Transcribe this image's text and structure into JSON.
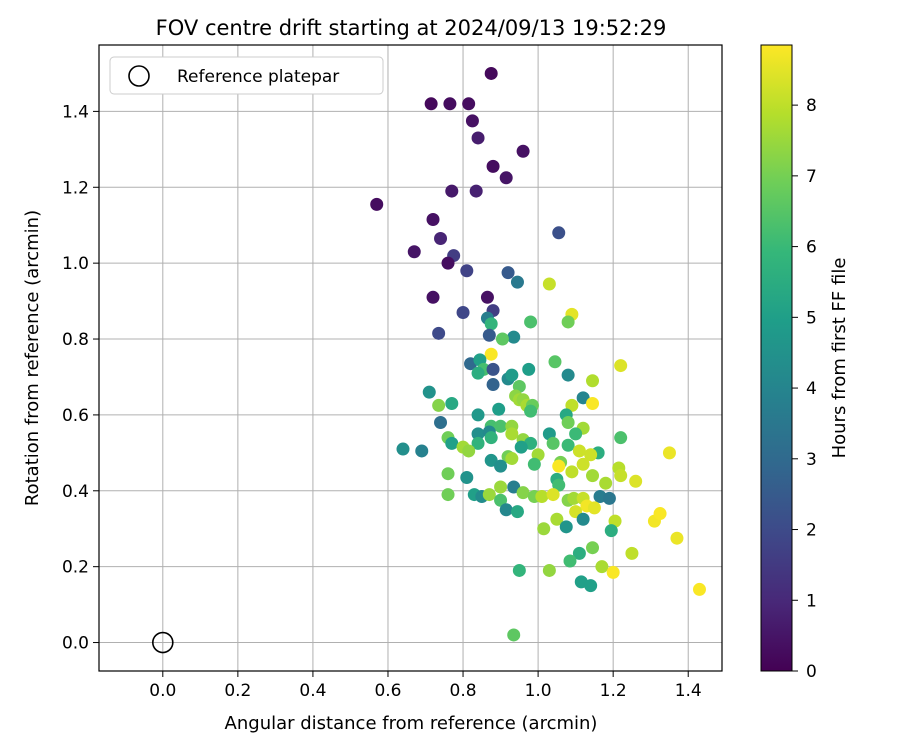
{
  "chart_data": {
    "type": "scatter",
    "title": "FOV centre drift starting at 2024/09/13 19:52:29",
    "xlabel": "Angular distance from reference (arcmin)",
    "ylabel": "Rotation from reference (arcmin)",
    "xlim": [
      -0.17,
      1.49
    ],
    "ylim": [
      -0.075,
      1.575
    ],
    "xticks": [
      "0.0",
      "0.2",
      "0.4",
      "0.6",
      "0.8",
      "1.0",
      "1.2",
      "1.4"
    ],
    "yticks": [
      "0.0",
      "0.2",
      "0.4",
      "0.6",
      "0.8",
      "1.0",
      "1.2",
      "1.4"
    ],
    "grid": true,
    "legend": {
      "position": "top-left",
      "entries": [
        {
          "label": "Reference platepar",
          "marker": "open-circle"
        }
      ]
    },
    "reference_point": {
      "x": 0.0,
      "y": 0.0
    },
    "colorbar": {
      "label": "Hours from first FF file",
      "colormap": "viridis",
      "range": [
        0,
        8.85
      ],
      "ticks": [
        "0",
        "1",
        "2",
        "3",
        "4",
        "5",
        "6",
        "7",
        "8"
      ]
    },
    "points": [
      {
        "x": 0.875,
        "y": 1.5,
        "c": 0.2
      },
      {
        "x": 0.715,
        "y": 1.42,
        "c": 0.2
      },
      {
        "x": 0.765,
        "y": 1.42,
        "c": 0.3
      },
      {
        "x": 0.815,
        "y": 1.42,
        "c": 0.3
      },
      {
        "x": 0.825,
        "y": 1.375,
        "c": 0.4
      },
      {
        "x": 0.84,
        "y": 1.33,
        "c": 0.7
      },
      {
        "x": 0.96,
        "y": 1.295,
        "c": 0.4
      },
      {
        "x": 0.88,
        "y": 1.255,
        "c": 0.3
      },
      {
        "x": 0.915,
        "y": 1.225,
        "c": 0.5
      },
      {
        "x": 0.77,
        "y": 1.19,
        "c": 0.6
      },
      {
        "x": 0.835,
        "y": 1.19,
        "c": 0.8
      },
      {
        "x": 0.57,
        "y": 1.155,
        "c": 0.3
      },
      {
        "x": 0.72,
        "y": 1.115,
        "c": 0.4
      },
      {
        "x": 0.74,
        "y": 1.065,
        "c": 0.9
      },
      {
        "x": 1.055,
        "y": 1.08,
        "c": 2.2
      },
      {
        "x": 0.67,
        "y": 1.03,
        "c": 0.5
      },
      {
        "x": 0.775,
        "y": 1.02,
        "c": 1.6
      },
      {
        "x": 0.76,
        "y": 1.0,
        "c": 0.3
      },
      {
        "x": 0.81,
        "y": 0.98,
        "c": 1.8
      },
      {
        "x": 0.92,
        "y": 0.975,
        "c": 2.5
      },
      {
        "x": 0.945,
        "y": 0.95,
        "c": 3.6
      },
      {
        "x": 1.03,
        "y": 0.945,
        "c": 8.1
      },
      {
        "x": 0.72,
        "y": 0.91,
        "c": 0.4
      },
      {
        "x": 0.865,
        "y": 0.91,
        "c": 0.4
      },
      {
        "x": 0.8,
        "y": 0.87,
        "c": 1.9
      },
      {
        "x": 0.88,
        "y": 0.875,
        "c": 1.6
      },
      {
        "x": 0.865,
        "y": 0.855,
        "c": 3.8
      },
      {
        "x": 1.09,
        "y": 0.865,
        "c": 8.5
      },
      {
        "x": 0.875,
        "y": 0.84,
        "c": 5.8
      },
      {
        "x": 0.98,
        "y": 0.845,
        "c": 6.3
      },
      {
        "x": 1.08,
        "y": 0.845,
        "c": 6.9
      },
      {
        "x": 0.735,
        "y": 0.815,
        "c": 2.0
      },
      {
        "x": 0.87,
        "y": 0.81,
        "c": 2.5
      },
      {
        "x": 0.935,
        "y": 0.805,
        "c": 4.2
      },
      {
        "x": 0.905,
        "y": 0.8,
        "c": 6.6
      },
      {
        "x": 0.875,
        "y": 0.76,
        "c": 8.8
      },
      {
        "x": 0.82,
        "y": 0.735,
        "c": 3.0
      },
      {
        "x": 0.845,
        "y": 0.745,
        "c": 5.0
      },
      {
        "x": 0.855,
        "y": 0.72,
        "c": 6.2
      },
      {
        "x": 0.88,
        "y": 0.72,
        "c": 2.3
      },
      {
        "x": 0.84,
        "y": 0.71,
        "c": 5.5
      },
      {
        "x": 0.92,
        "y": 0.695,
        "c": 4.2
      },
      {
        "x": 0.93,
        "y": 0.705,
        "c": 4.8
      },
      {
        "x": 0.975,
        "y": 0.72,
        "c": 4.9
      },
      {
        "x": 1.045,
        "y": 0.74,
        "c": 6.5
      },
      {
        "x": 1.08,
        "y": 0.705,
        "c": 4.2
      },
      {
        "x": 1.22,
        "y": 0.73,
        "c": 8.4
      },
      {
        "x": 0.88,
        "y": 0.68,
        "c": 2.8
      },
      {
        "x": 0.95,
        "y": 0.675,
        "c": 6.6
      },
      {
        "x": 1.145,
        "y": 0.69,
        "c": 7.8
      },
      {
        "x": 0.71,
        "y": 0.66,
        "c": 4.5
      },
      {
        "x": 0.94,
        "y": 0.65,
        "c": 7.3
      },
      {
        "x": 0.95,
        "y": 0.64,
        "c": 7.6
      },
      {
        "x": 0.96,
        "y": 0.64,
        "c": 7.4
      },
      {
        "x": 1.12,
        "y": 0.645,
        "c": 4.0
      },
      {
        "x": 0.735,
        "y": 0.625,
        "c": 7.2
      },
      {
        "x": 0.77,
        "y": 0.63,
        "c": 5.3
      },
      {
        "x": 0.97,
        "y": 0.625,
        "c": 7.7
      },
      {
        "x": 0.985,
        "y": 0.625,
        "c": 6.8
      },
      {
        "x": 1.09,
        "y": 0.625,
        "c": 8.0
      },
      {
        "x": 1.145,
        "y": 0.63,
        "c": 8.8
      },
      {
        "x": 0.895,
        "y": 0.615,
        "c": 4.9
      },
      {
        "x": 0.98,
        "y": 0.61,
        "c": 6.1
      },
      {
        "x": 0.84,
        "y": 0.6,
        "c": 4.7
      },
      {
        "x": 1.075,
        "y": 0.6,
        "c": 5.3
      },
      {
        "x": 1.08,
        "y": 0.58,
        "c": 6.9
      },
      {
        "x": 0.74,
        "y": 0.58,
        "c": 3.2
      },
      {
        "x": 0.875,
        "y": 0.57,
        "c": 6.2
      },
      {
        "x": 0.9,
        "y": 0.57,
        "c": 6.3
      },
      {
        "x": 0.93,
        "y": 0.57,
        "c": 7.4
      },
      {
        "x": 1.12,
        "y": 0.565,
        "c": 7.6
      },
      {
        "x": 0.84,
        "y": 0.55,
        "c": 4.4
      },
      {
        "x": 0.87,
        "y": 0.555,
        "c": 4.2
      },
      {
        "x": 0.93,
        "y": 0.55,
        "c": 7.7
      },
      {
        "x": 1.03,
        "y": 0.55,
        "c": 4.8
      },
      {
        "x": 1.1,
        "y": 0.55,
        "c": 6.0
      },
      {
        "x": 0.76,
        "y": 0.54,
        "c": 6.9
      },
      {
        "x": 0.875,
        "y": 0.54,
        "c": 5.7
      },
      {
        "x": 0.96,
        "y": 0.535,
        "c": 7.4
      },
      {
        "x": 1.22,
        "y": 0.54,
        "c": 6.3
      },
      {
        "x": 0.77,
        "y": 0.525,
        "c": 5.0
      },
      {
        "x": 0.84,
        "y": 0.525,
        "c": 5.7
      },
      {
        "x": 0.98,
        "y": 0.525,
        "c": 5.6
      },
      {
        "x": 1.04,
        "y": 0.525,
        "c": 6.5
      },
      {
        "x": 1.08,
        "y": 0.52,
        "c": 6.0
      },
      {
        "x": 0.64,
        "y": 0.51,
        "c": 4.4
      },
      {
        "x": 0.69,
        "y": 0.505,
        "c": 3.9
      },
      {
        "x": 0.8,
        "y": 0.515,
        "c": 7.6
      },
      {
        "x": 0.815,
        "y": 0.505,
        "c": 7.4
      },
      {
        "x": 0.955,
        "y": 0.515,
        "c": 5.0
      },
      {
        "x": 1.0,
        "y": 0.495,
        "c": 7.6
      },
      {
        "x": 1.11,
        "y": 0.505,
        "c": 8.2
      },
      {
        "x": 1.16,
        "y": 0.5,
        "c": 5.5
      },
      {
        "x": 0.92,
        "y": 0.49,
        "c": 6.9
      },
      {
        "x": 0.93,
        "y": 0.485,
        "c": 7.6
      },
      {
        "x": 1.06,
        "y": 0.475,
        "c": 7.0
      },
      {
        "x": 1.14,
        "y": 0.495,
        "c": 8.2
      },
      {
        "x": 1.35,
        "y": 0.5,
        "c": 8.6
      },
      {
        "x": 0.875,
        "y": 0.48,
        "c": 4.6
      },
      {
        "x": 0.9,
        "y": 0.465,
        "c": 4.4
      },
      {
        "x": 0.99,
        "y": 0.47,
        "c": 6.1
      },
      {
        "x": 1.055,
        "y": 0.465,
        "c": 8.8
      },
      {
        "x": 1.09,
        "y": 0.45,
        "c": 8.0
      },
      {
        "x": 1.12,
        "y": 0.47,
        "c": 8.2
      },
      {
        "x": 1.215,
        "y": 0.46,
        "c": 7.9
      },
      {
        "x": 0.76,
        "y": 0.445,
        "c": 6.9
      },
      {
        "x": 0.81,
        "y": 0.435,
        "c": 4.5
      },
      {
        "x": 1.05,
        "y": 0.43,
        "c": 5.5
      },
      {
        "x": 1.145,
        "y": 0.44,
        "c": 7.6
      },
      {
        "x": 1.22,
        "y": 0.44,
        "c": 8.1
      },
      {
        "x": 1.055,
        "y": 0.415,
        "c": 6.1
      },
      {
        "x": 1.18,
        "y": 0.42,
        "c": 7.7
      },
      {
        "x": 1.26,
        "y": 0.425,
        "c": 8.4
      },
      {
        "x": 0.9,
        "y": 0.41,
        "c": 7.5
      },
      {
        "x": 0.935,
        "y": 0.41,
        "c": 3.8
      },
      {
        "x": 0.76,
        "y": 0.39,
        "c": 6.9
      },
      {
        "x": 0.83,
        "y": 0.39,
        "c": 5.0
      },
      {
        "x": 0.85,
        "y": 0.385,
        "c": 4.3
      },
      {
        "x": 0.87,
        "y": 0.39,
        "c": 7.5
      },
      {
        "x": 0.96,
        "y": 0.395,
        "c": 7.2
      },
      {
        "x": 0.99,
        "y": 0.385,
        "c": 7.0
      },
      {
        "x": 1.01,
        "y": 0.385,
        "c": 7.9
      },
      {
        "x": 1.04,
        "y": 0.39,
        "c": 8.4
      },
      {
        "x": 1.08,
        "y": 0.375,
        "c": 7.2
      },
      {
        "x": 1.095,
        "y": 0.38,
        "c": 7.6
      },
      {
        "x": 1.12,
        "y": 0.38,
        "c": 8.1
      },
      {
        "x": 1.165,
        "y": 0.385,
        "c": 3.7
      },
      {
        "x": 1.19,
        "y": 0.38,
        "c": 3.5
      },
      {
        "x": 0.9,
        "y": 0.375,
        "c": 6.3
      },
      {
        "x": 1.13,
        "y": 0.36,
        "c": 8.7
      },
      {
        "x": 1.15,
        "y": 0.355,
        "c": 8.5
      },
      {
        "x": 0.915,
        "y": 0.35,
        "c": 4.1
      },
      {
        "x": 0.945,
        "y": 0.345,
        "c": 5.3
      },
      {
        "x": 1.1,
        "y": 0.345,
        "c": 8.3
      },
      {
        "x": 1.31,
        "y": 0.32,
        "c": 8.7
      },
      {
        "x": 1.325,
        "y": 0.34,
        "c": 8.8
      },
      {
        "x": 1.05,
        "y": 0.325,
        "c": 7.7
      },
      {
        "x": 1.12,
        "y": 0.325,
        "c": 4.2
      },
      {
        "x": 1.205,
        "y": 0.32,
        "c": 8.0
      },
      {
        "x": 1.015,
        "y": 0.3,
        "c": 7.5
      },
      {
        "x": 1.075,
        "y": 0.305,
        "c": 4.6
      },
      {
        "x": 1.195,
        "y": 0.295,
        "c": 5.5
      },
      {
        "x": 1.37,
        "y": 0.275,
        "c": 8.6
      },
      {
        "x": 1.145,
        "y": 0.25,
        "c": 7.0
      },
      {
        "x": 1.11,
        "y": 0.235,
        "c": 5.5
      },
      {
        "x": 1.25,
        "y": 0.235,
        "c": 8.0
      },
      {
        "x": 1.085,
        "y": 0.215,
        "c": 6.1
      },
      {
        "x": 1.17,
        "y": 0.2,
        "c": 7.7
      },
      {
        "x": 1.2,
        "y": 0.185,
        "c": 8.8
      },
      {
        "x": 0.95,
        "y": 0.19,
        "c": 5.8
      },
      {
        "x": 1.03,
        "y": 0.19,
        "c": 7.4
      },
      {
        "x": 1.115,
        "y": 0.16,
        "c": 5.0
      },
      {
        "x": 1.14,
        "y": 0.15,
        "c": 5.0
      },
      {
        "x": 1.43,
        "y": 0.14,
        "c": 8.8
      },
      {
        "x": 0.935,
        "y": 0.02,
        "c": 6.6
      }
    ]
  }
}
